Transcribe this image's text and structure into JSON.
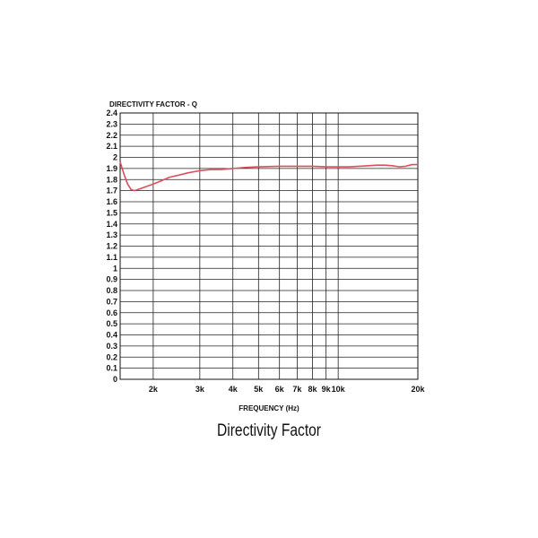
{
  "caption": "Directivity Factor",
  "chart_data": {
    "type": "line",
    "ylabel": "DIRECTIVITY FACTOR - Q",
    "xlabel": "FREQUENCY (Hz)",
    "x_scale": "log",
    "xlim": [
      1500,
      20000
    ],
    "ylim": [
      0,
      2.4
    ],
    "grid": true,
    "y_ticks": [
      {
        "value": 0,
        "label": "0"
      },
      {
        "value": 0.1,
        "label": "0.1"
      },
      {
        "value": 0.2,
        "label": "0.2"
      },
      {
        "value": 0.3,
        "label": "0.3"
      },
      {
        "value": 0.4,
        "label": "0.4"
      },
      {
        "value": 0.5,
        "label": "0.5"
      },
      {
        "value": 0.6,
        "label": "0.6"
      },
      {
        "value": 0.7,
        "label": "0.7"
      },
      {
        "value": 0.8,
        "label": "0.8"
      },
      {
        "value": 0.9,
        "label": "0.9"
      },
      {
        "value": 1.0,
        "label": "1"
      },
      {
        "value": 1.1,
        "label": "1.1"
      },
      {
        "value": 1.2,
        "label": "1.2"
      },
      {
        "value": 1.3,
        "label": "1.3"
      },
      {
        "value": 1.4,
        "label": "1.4"
      },
      {
        "value": 1.5,
        "label": "1.5"
      },
      {
        "value": 1.6,
        "label": "1.6"
      },
      {
        "value": 1.7,
        "label": "1.7"
      },
      {
        "value": 1.8,
        "label": "1.8"
      },
      {
        "value": 1.9,
        "label": "1.9"
      },
      {
        "value": 2.0,
        "label": "2"
      },
      {
        "value": 2.1,
        "label": "2.1"
      },
      {
        "value": 2.2,
        "label": "2.2"
      },
      {
        "value": 2.3,
        "label": "2.3"
      },
      {
        "value": 2.4,
        "label": "2.4"
      }
    ],
    "x_ticks": [
      {
        "value": 2000,
        "label": "2k"
      },
      {
        "value": 3000,
        "label": "3k"
      },
      {
        "value": 4000,
        "label": "4k"
      },
      {
        "value": 5000,
        "label": "5k"
      },
      {
        "value": 6000,
        "label": "6k"
      },
      {
        "value": 7000,
        "label": "7k"
      },
      {
        "value": 8000,
        "label": "8k"
      },
      {
        "value": 9000,
        "label": "9k"
      },
      {
        "value": 10000,
        "label": "10k"
      },
      {
        "value": 20000,
        "label": "20k"
      }
    ],
    "series": [
      {
        "color": "#d9505a",
        "points": [
          [
            1500,
            1.96
          ],
          [
            1550,
            1.85
          ],
          [
            1600,
            1.76
          ],
          [
            1650,
            1.71
          ],
          [
            1700,
            1.7
          ],
          [
            1800,
            1.72
          ],
          [
            1900,
            1.74
          ],
          [
            2000,
            1.76
          ],
          [
            2100,
            1.78
          ],
          [
            2200,
            1.8
          ],
          [
            2300,
            1.82
          ],
          [
            2500,
            1.84
          ],
          [
            2700,
            1.86
          ],
          [
            3000,
            1.88
          ],
          [
            3300,
            1.89
          ],
          [
            3600,
            1.89
          ],
          [
            4000,
            1.9
          ],
          [
            4500,
            1.91
          ],
          [
            5000,
            1.915
          ],
          [
            6000,
            1.92
          ],
          [
            7000,
            1.92
          ],
          [
            8000,
            1.92
          ],
          [
            9000,
            1.915
          ],
          [
            10000,
            1.915
          ],
          [
            11000,
            1.915
          ],
          [
            12000,
            1.92
          ],
          [
            13000,
            1.925
          ],
          [
            14000,
            1.93
          ],
          [
            15000,
            1.93
          ],
          [
            16000,
            1.925
          ],
          [
            17000,
            1.915
          ],
          [
            18000,
            1.92
          ],
          [
            19000,
            1.935
          ],
          [
            20000,
            1.935
          ]
        ]
      }
    ]
  }
}
